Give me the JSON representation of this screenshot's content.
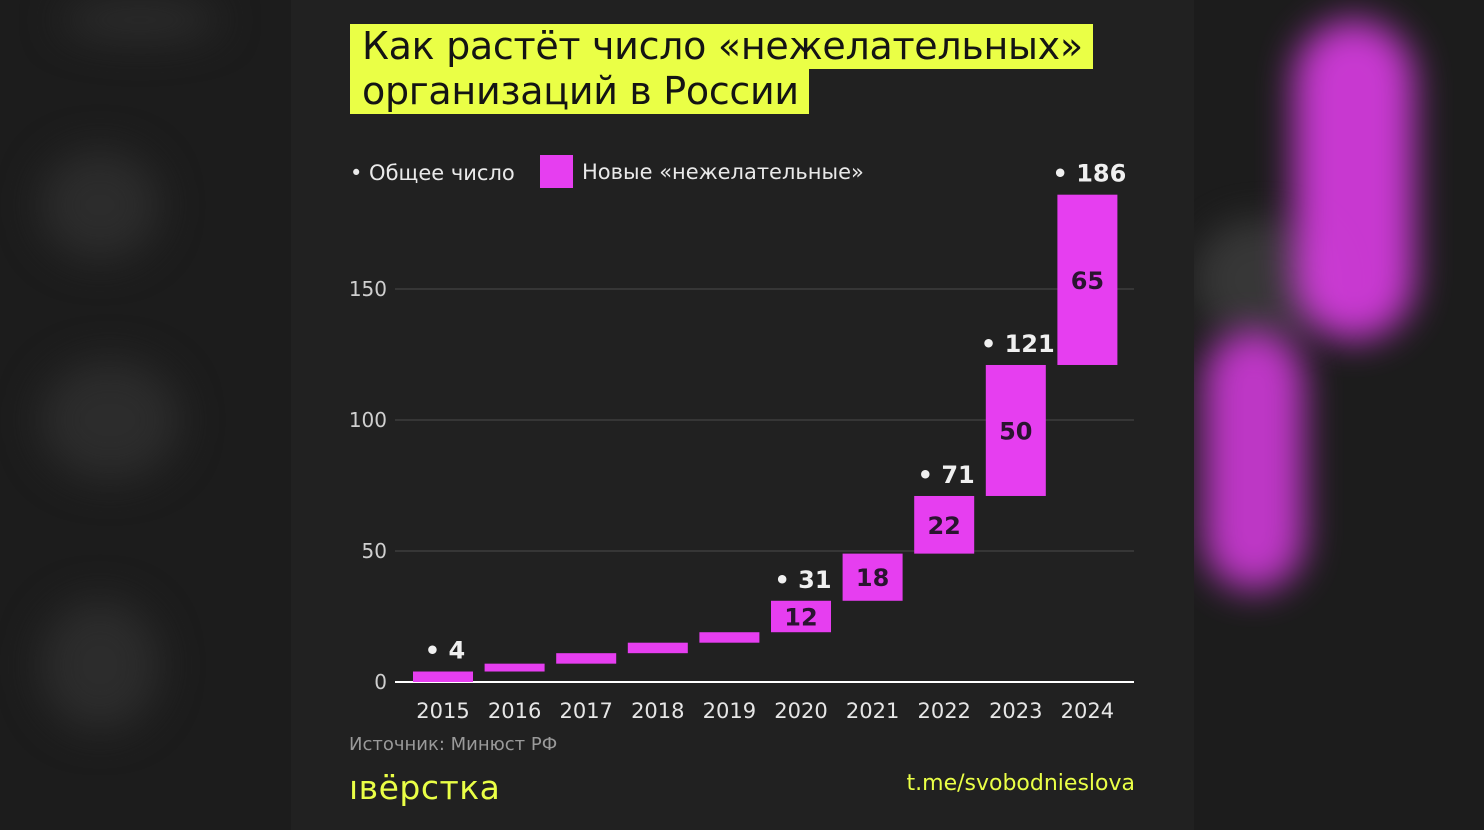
{
  "title_lines": [
    "Как растёт число «нежелательных»",
    "организаций в России"
  ],
  "legend": {
    "total_label": "• Общее число",
    "new_label": "Новые «нежелательные»"
  },
  "source": "Источник: Минюст РФ",
  "brand": "ıвёрстка",
  "channel": "t.me/svobodnieslova",
  "colors": {
    "accent": "#eaff46",
    "bar": "#e63ef0",
    "background": "#212121"
  },
  "chart_data": {
    "type": "bar",
    "subtype": "floating/waterfall",
    "categories": [
      "2015",
      "2016",
      "2017",
      "2018",
      "2019",
      "2020",
      "2021",
      "2022",
      "2023",
      "2024"
    ],
    "series": [
      {
        "name": "Новые «нежелательные»",
        "values": [
          4,
          3,
          4,
          4,
          4,
          12,
          18,
          22,
          50,
          65
        ],
        "data_labels": [
          "",
          "",
          "",
          "",
          "",
          "12",
          "18",
          "22",
          "50",
          "65"
        ]
      },
      {
        "name": "Общее число",
        "values": [
          4,
          7,
          11,
          15,
          19,
          31,
          49,
          71,
          121,
          186
        ],
        "data_labels": [
          "• 4",
          "",
          "",
          "",
          "",
          "• 31",
          "",
          "• 71",
          "• 121",
          "• 186"
        ]
      }
    ],
    "yticks": [
      "0",
      "50",
      "100",
      "150"
    ],
    "ylim": [
      0,
      186
    ],
    "grid": true,
    "legend_position": "top-left"
  }
}
